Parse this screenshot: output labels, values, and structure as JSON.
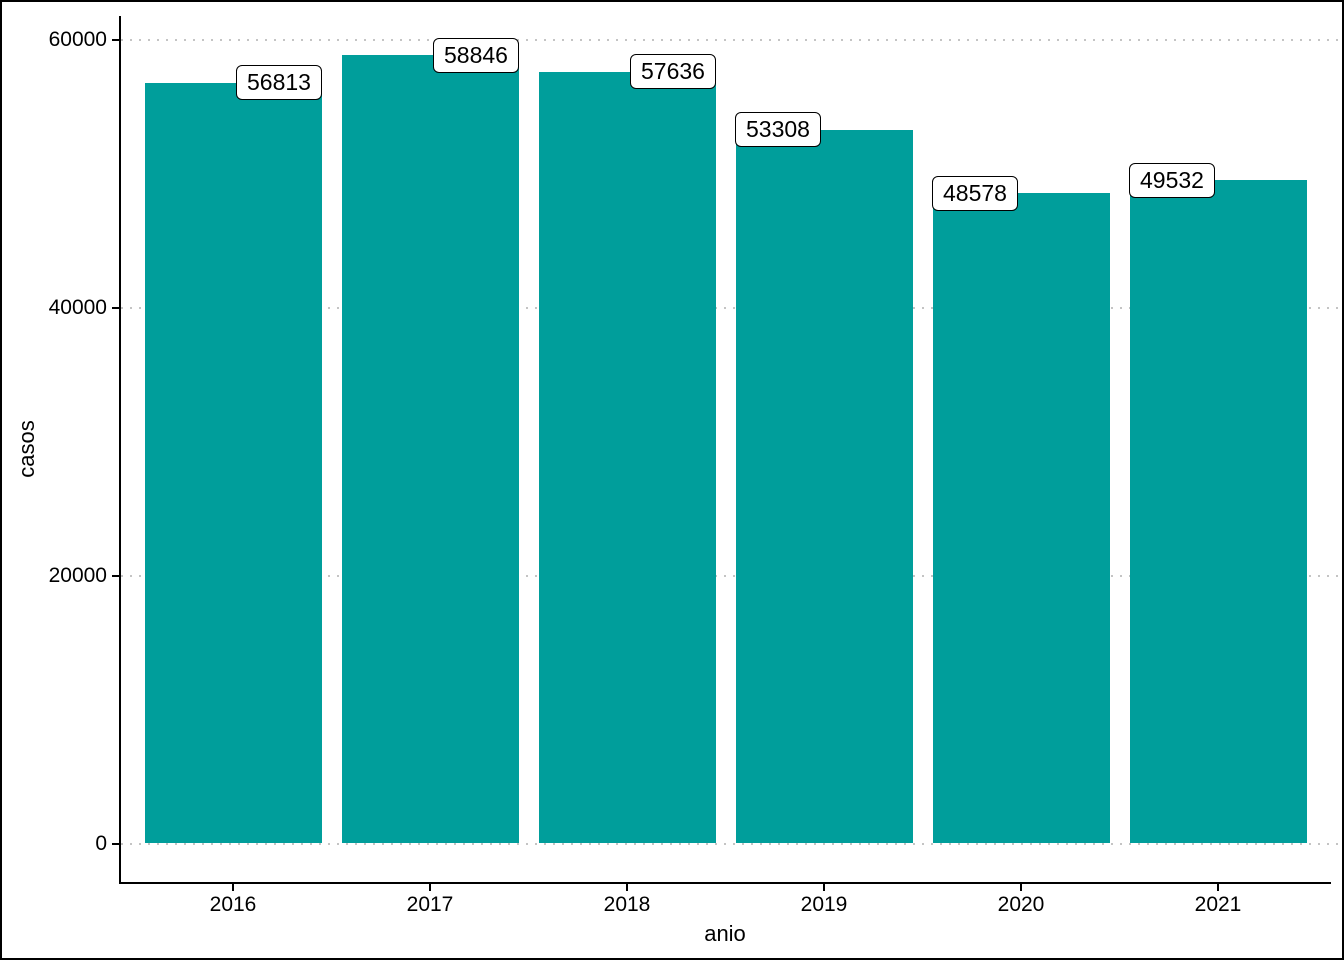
{
  "figure": {
    "background_color": "#FFFFFF",
    "border_color": "#000000"
  },
  "chart_data": {
    "type": "bar",
    "title": "",
    "xlabel": "anio",
    "ylabel": "casos",
    "categories": [
      "2016",
      "2017",
      "2018",
      "2019",
      "2020",
      "2021"
    ],
    "values": [
      56813,
      58846,
      57636,
      53308,
      48578,
      49532
    ],
    "bar_labels": [
      "56813",
      "58846",
      "57636",
      "53308",
      "48578",
      "49532"
    ],
    "ylim": [
      0,
      60000
    ],
    "yticks": [
      0,
      20000,
      40000,
      60000
    ],
    "ytick_labels": [
      "0",
      "20000",
      "40000",
      "60000"
    ],
    "grid": "horizontal dotted lines at y ticks",
    "legend": "none",
    "bar_color": "#009E9B",
    "gridline_color": "#C4C4C4",
    "axis_color": "#000000",
    "label_box": {
      "fill": "#FFFFFF",
      "border_color": "#000000",
      "text_color": "#000000"
    },
    "label_dx": [
      46,
      46,
      46,
      -46,
      -46,
      -46
    ]
  }
}
